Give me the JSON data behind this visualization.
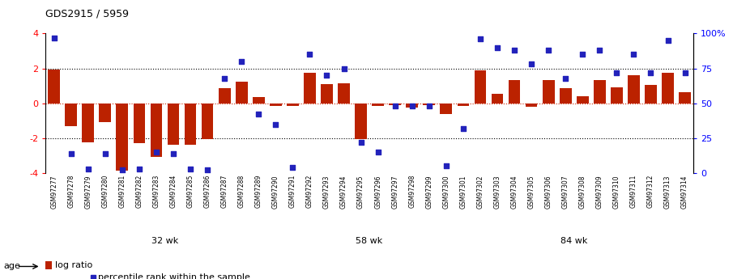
{
  "title": "GDS2915 / 5959",
  "samples": [
    "GSM97277",
    "GSM97278",
    "GSM97279",
    "GSM97280",
    "GSM97281",
    "GSM97282",
    "GSM97283",
    "GSM97284",
    "GSM97285",
    "GSM97286",
    "GSM97287",
    "GSM97288",
    "GSM97289",
    "GSM97290",
    "GSM97291",
    "GSM97292",
    "GSM97293",
    "GSM97294",
    "GSM97295",
    "GSM97296",
    "GSM97297",
    "GSM97298",
    "GSM97299",
    "GSM97300",
    "GSM97301",
    "GSM97302",
    "GSM97303",
    "GSM97304",
    "GSM97305",
    "GSM97306",
    "GSM97307",
    "GSM97308",
    "GSM97309",
    "GSM97310",
    "GSM97311",
    "GSM97312",
    "GSM97313",
    "GSM97314"
  ],
  "log_ratio": [
    1.95,
    -1.3,
    -2.25,
    -1.1,
    -3.85,
    -2.3,
    -3.1,
    -2.4,
    -2.4,
    -2.05,
    0.85,
    1.25,
    0.35,
    -0.15,
    -0.15,
    1.75,
    1.1,
    1.15,
    -2.05,
    -0.15,
    -0.1,
    -0.25,
    -0.1,
    -0.6,
    -0.15,
    1.9,
    0.55,
    1.35,
    -0.2,
    1.35,
    0.85,
    0.4,
    1.35,
    0.9,
    1.6,
    1.05,
    1.75,
    0.65
  ],
  "percentile": [
    97,
    14,
    3,
    14,
    2,
    3,
    15,
    14,
    3,
    2,
    68,
    80,
    42,
    35,
    4,
    85,
    70,
    75,
    22,
    15,
    48,
    48,
    48,
    5,
    32,
    96,
    90,
    88,
    78,
    88,
    68,
    85,
    88,
    72,
    85,
    72,
    95,
    72
  ],
  "groups": [
    {
      "label": "32 wk",
      "start": 0,
      "end": 14
    },
    {
      "label": "58 wk",
      "start": 14,
      "end": 24
    },
    {
      "label": "84 wk",
      "start": 24,
      "end": 38
    }
  ],
  "bar_color": "#bb2200",
  "dot_color": "#2222bb",
  "ylim_left": [
    -4,
    4
  ],
  "ylim_right": [
    0,
    100
  ],
  "yticks_left": [
    -4,
    -2,
    0,
    2,
    4
  ],
  "yticks_right": [
    0,
    25,
    50,
    75,
    100
  ],
  "ytick_labels_right": [
    "0",
    "25",
    "50",
    "75",
    "100%"
  ],
  "hline_color": "#cc2200",
  "dotted_line_color": "black",
  "bg_color": "#ffffff",
  "group_colors": [
    "#ccffcc",
    "#88ee88",
    "#66dd66"
  ],
  "tick_bg_even": "#cccccc",
  "tick_bg_odd": "#dddddd",
  "age_label": "age",
  "legend_bar_label": "log ratio",
  "legend_dot_label": "percentile rank within the sample"
}
